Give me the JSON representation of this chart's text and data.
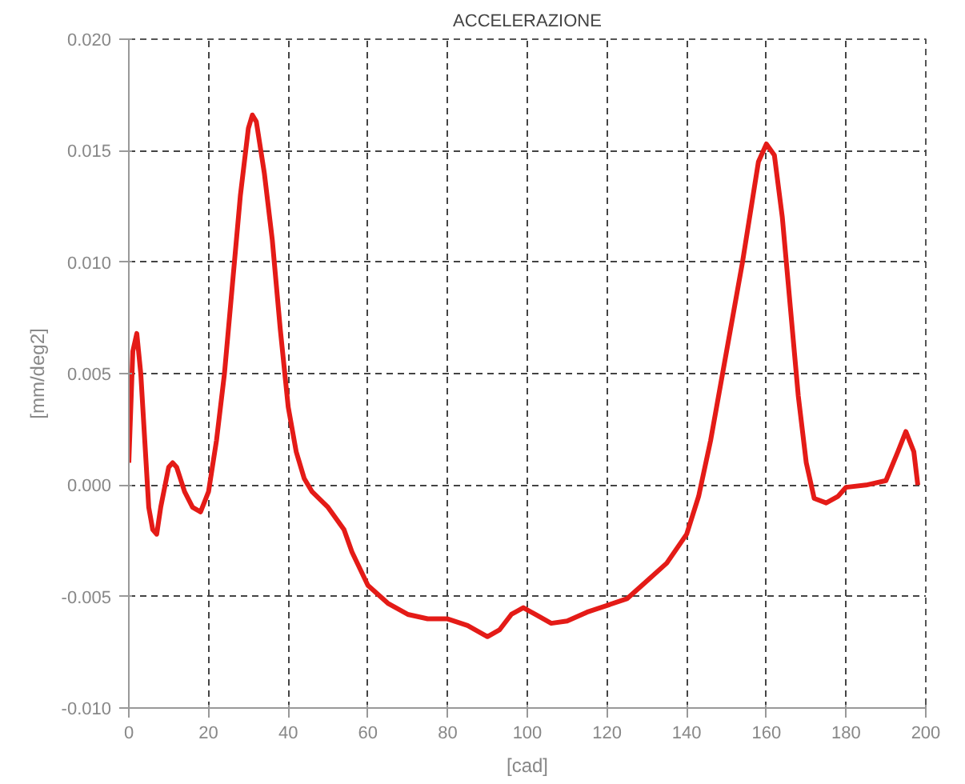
{
  "chart_data": {
    "type": "line",
    "title": "ACCELERAZIONE",
    "xlabel": "[cad]",
    "ylabel": "[mm/deg2]",
    "xlim": [
      0,
      200
    ],
    "ylim": [
      -0.01,
      0.02
    ],
    "xticks": [
      0,
      20,
      40,
      60,
      80,
      100,
      120,
      140,
      160,
      180,
      200
    ],
    "yticks": [
      {
        "value": -0.01,
        "label": "-0.010"
      },
      {
        "value": -0.005,
        "label": "-0.005"
      },
      {
        "value": 0,
        "label": "0.000"
      },
      {
        "value": 0.005,
        "label": "0.005"
      },
      {
        "value": 0.01,
        "label": "0.010"
      },
      {
        "value": 0.015,
        "label": "0.015"
      },
      {
        "value": 0.02,
        "label": "0.020"
      }
    ],
    "grid": true,
    "marker": "none",
    "line_style": "solid",
    "x": [
      0,
      1,
      2,
      3,
      4,
      5,
      6,
      7,
      8,
      10,
      11,
      12,
      14,
      16,
      18,
      20,
      22,
      24,
      26,
      28,
      30,
      31,
      32,
      34,
      36,
      38,
      40,
      42,
      44,
      46,
      50,
      54,
      56,
      60,
      65,
      70,
      75,
      80,
      85,
      90,
      93,
      96,
      99,
      102,
      106,
      110,
      115,
      120,
      125,
      130,
      135,
      140,
      143,
      146,
      150,
      154,
      158,
      160,
      162,
      164,
      166,
      168,
      170,
      172,
      175,
      178,
      180,
      185,
      190,
      193,
      195,
      197,
      198
    ],
    "series": [
      {
        "color": "#e41b17",
        "values": [
          0.001,
          0.006,
          0.0068,
          0.005,
          0.002,
          -0.001,
          -0.002,
          -0.0022,
          -0.001,
          0.0008,
          0.001,
          0.0008,
          -0.0003,
          -0.001,
          -0.0012,
          -0.0003,
          0.002,
          0.005,
          0.009,
          0.013,
          0.016,
          0.0166,
          0.0163,
          0.014,
          0.011,
          0.007,
          0.0035,
          0.0015,
          0.0003,
          -0.0003,
          -0.001,
          -0.002,
          -0.003,
          -0.0045,
          -0.0053,
          -0.0058,
          -0.006,
          -0.006,
          -0.0063,
          -0.0068,
          -0.0065,
          -0.0058,
          -0.0055,
          -0.0058,
          -0.0062,
          -0.0061,
          -0.0057,
          -0.0054,
          -0.0051,
          -0.0043,
          -0.0035,
          -0.0022,
          -0.0005,
          0.002,
          0.006,
          0.01,
          0.0145,
          0.0153,
          0.0148,
          0.012,
          0.008,
          0.004,
          0.001,
          -0.0006,
          -0.0008,
          -0.0005,
          -0.0001,
          0.0,
          0.0002,
          0.0015,
          0.0024,
          0.0015,
          0.0
        ]
      }
    ]
  }
}
